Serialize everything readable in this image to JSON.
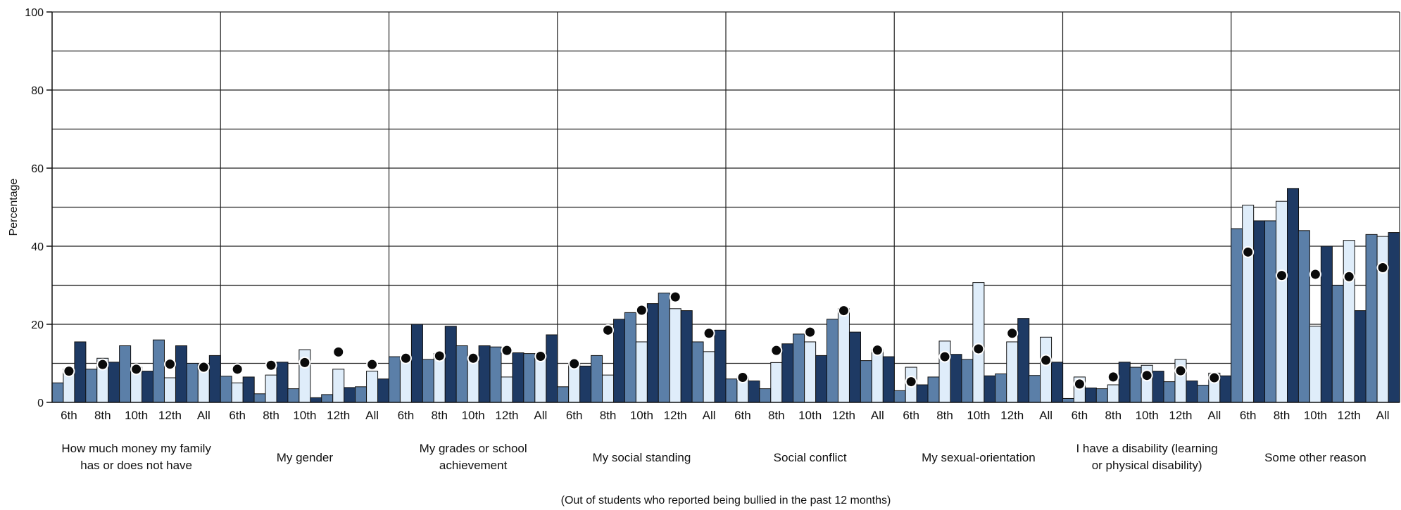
{
  "chart_data": {
    "type": "bar",
    "ylabel": "Percentage",
    "ylim": [
      0,
      100
    ],
    "yticks": [
      0,
      20,
      40,
      60,
      80,
      100
    ],
    "grid": true,
    "footnote": "(Out of students who reported being bullied in the past 12 months)",
    "grades": [
      "6th",
      "8th",
      "10th",
      "12th",
      "All"
    ],
    "groups": [
      {
        "label_lines": [
          "How much money my family",
          "has or does not have"
        ]
      },
      {
        "label_lines": [
          "My gender"
        ]
      },
      {
        "label_lines": [
          "My grades or school",
          "achievement"
        ]
      },
      {
        "label_lines": [
          "My social standing"
        ]
      },
      {
        "label_lines": [
          "Social conflict"
        ]
      },
      {
        "label_lines": [
          "My sexual-orientation"
        ]
      },
      {
        "label_lines": [
          "I have a disability (learning",
          "or physical disability)"
        ]
      },
      {
        "label_lines": [
          "Some other reason"
        ]
      }
    ],
    "series": [
      {
        "color": "#5b7fa8",
        "values": [
          [
            5,
            8.5,
            14.5,
            16,
            10
          ],
          [
            6.7,
            2.2,
            3.5,
            2,
            4
          ],
          [
            11.7,
            11,
            14.5,
            14.2,
            12.5
          ],
          [
            4,
            12,
            23,
            28,
            15.5
          ],
          [
            6,
            3.5,
            17.5,
            21.3,
            10.7
          ],
          [
            3,
            6.5,
            11,
            7.3,
            6.9
          ],
          [
            1,
            3.5,
            9,
            5.3,
            4.4
          ],
          [
            44.5,
            46.5,
            44,
            30,
            43
          ]
        ]
      },
      {
        "color": "#dfedfa",
        "values": [
          [
            8.5,
            11.3,
            9,
            6.3,
            10
          ],
          [
            5,
            7,
            13.5,
            8.5,
            8
          ],
          [
            11.7,
            12.5,
            11.5,
            6.5,
            12.5
          ],
          [
            10,
            7,
            15.5,
            24,
            13
          ],
          [
            6.5,
            10.2,
            15.5,
            24,
            13.5
          ],
          [
            9,
            15.7,
            30.7,
            15.5,
            16.7
          ],
          [
            6.5,
            4.5,
            9.5,
            11,
            7.5
          ],
          [
            50.5,
            51.5,
            19.5,
            41.5,
            42.5
          ]
        ]
      },
      {
        "color": "#1e3a64",
        "values": [
          [
            15.5,
            10.3,
            8,
            14.5,
            12
          ],
          [
            6.5,
            10.3,
            1.2,
            3.8,
            6
          ],
          [
            20,
            19.5,
            14.5,
            12.7,
            17.3
          ],
          [
            9.3,
            21.3,
            25.3,
            23.5,
            18.5
          ],
          [
            5.5,
            15,
            12,
            18,
            11.7
          ],
          [
            4.5,
            12.3,
            6.8,
            21.5,
            10.3
          ],
          [
            3.7,
            10.3,
            8,
            5.5,
            6.8
          ],
          [
            46.5,
            54.8,
            40,
            23.5,
            43.5
          ]
        ]
      }
    ],
    "markers": {
      "color": "#0a0a0a",
      "values": [
        [
          8,
          9.7,
          8.5,
          9.8,
          9
        ],
        [
          8.5,
          9.5,
          10.2,
          12.9,
          9.7
        ],
        [
          11.3,
          11.9,
          11.3,
          13.3,
          11.8
        ],
        [
          9.9,
          18.5,
          23.6,
          27,
          17.7
        ],
        [
          6.4,
          13.3,
          18,
          23.5,
          13.4
        ],
        [
          5.3,
          11.7,
          13.7,
          17.7,
          10.8
        ],
        [
          4.7,
          6.5,
          6.9,
          8.1,
          6.3
        ],
        [
          38.5,
          32.5,
          32.8,
          32.2,
          34.5
        ]
      ]
    }
  }
}
